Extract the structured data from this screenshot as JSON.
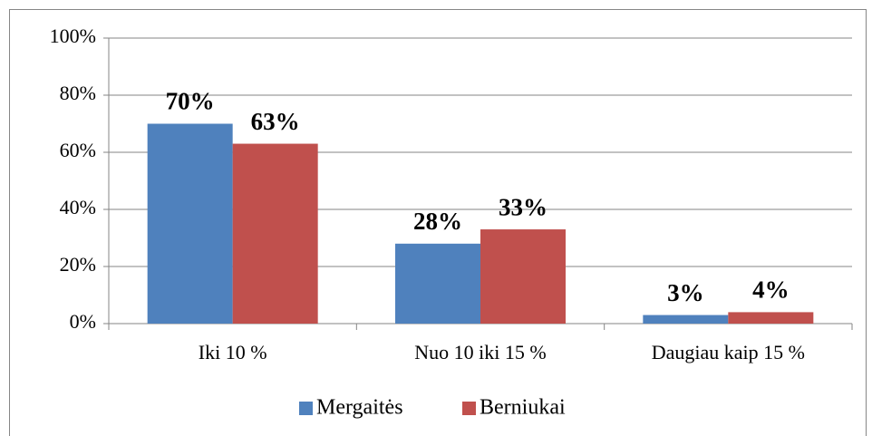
{
  "chart_data": {
    "type": "bar",
    "categories": [
      "Iki 10 %",
      "Nuo 10 iki 15 %",
      "Daugiau kaip 15 %"
    ],
    "series": [
      {
        "name": "Mergaitės",
        "color": "#4f81bd",
        "values": [
          70,
          28,
          3
        ],
        "value_labels": [
          "70%",
          "28%",
          "3%"
        ]
      },
      {
        "name": "Berniukai",
        "color": "#c0504d",
        "values": [
          63,
          33,
          4
        ],
        "value_labels": [
          "63%",
          "33%",
          "4%"
        ]
      }
    ],
    "ylim": [
      0,
      100
    ],
    "yticks": [
      {
        "value": 0,
        "label": "0%"
      },
      {
        "value": 20,
        "label": "20%"
      },
      {
        "value": 40,
        "label": "40%"
      },
      {
        "value": 60,
        "label": "60%"
      },
      {
        "value": 80,
        "label": "80%"
      },
      {
        "value": 100,
        "label": "100%"
      }
    ],
    "grid": true,
    "legend": "bottom"
  }
}
